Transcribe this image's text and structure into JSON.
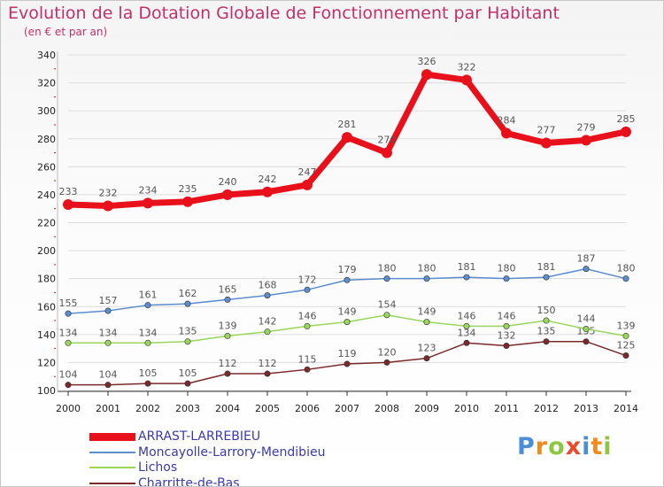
{
  "title": "Evolution de la Dotation Globale de Fonctionnement par Habitant",
  "subtitle": "(en € et par an)",
  "colors": {
    "title": "#c0306a",
    "grid": "#dddddd",
    "axis_text": "#222222",
    "legend_text": "#3a3aa8",
    "label_text": "#555555"
  },
  "logo": {
    "text": "Proxiti",
    "letter_colors": [
      "#4a8fd6",
      "#f08a1c",
      "#8dc63f",
      "#e84b2c",
      "#4a8fd6",
      "#f08a1c",
      "#8dc63f"
    ]
  },
  "chart_data": {
    "type": "line",
    "title": "Evolution de la Dotation Globale de Fonctionnement par Habitant",
    "subtitle": "(en € et par an)",
    "x": [
      "2000",
      "2001",
      "2002",
      "2003",
      "2004",
      "2005",
      "2006",
      "2007",
      "2008",
      "2009",
      "2010",
      "2011",
      "2012",
      "2013",
      "2014"
    ],
    "ylim": [
      100,
      340
    ],
    "yticks": [
      100,
      120,
      140,
      160,
      180,
      200,
      220,
      240,
      260,
      280,
      300,
      320,
      340
    ],
    "grid": true,
    "legend_position": "bottom-left",
    "series": [
      {
        "name": "ARRAST-LARREBIEU",
        "color": "#e8111b",
        "thick": true,
        "values": [
          233,
          232,
          234,
          235,
          240,
          242,
          247,
          281,
          270,
          326,
          322,
          284,
          277,
          279,
          285
        ]
      },
      {
        "name": "Moncayolle-Larrory-Mendibieu",
        "color": "#5c8dcc",
        "thick": false,
        "values": [
          155,
          157,
          161,
          162,
          165,
          168,
          172,
          179,
          180,
          180,
          181,
          180,
          181,
          187,
          180
        ]
      },
      {
        "name": "Lichos",
        "color": "#99d65c",
        "thick": false,
        "values": [
          134,
          134,
          134,
          135,
          139,
          142,
          146,
          149,
          154,
          149,
          146,
          146,
          150,
          144,
          139
        ]
      },
      {
        "name": "Charritte-de-Bas",
        "color": "#7a2a2a",
        "thick": false,
        "values": [
          104,
          104,
          105,
          105,
          112,
          112,
          115,
          119,
          120,
          123,
          134,
          132,
          135,
          135,
          125
        ]
      }
    ]
  }
}
